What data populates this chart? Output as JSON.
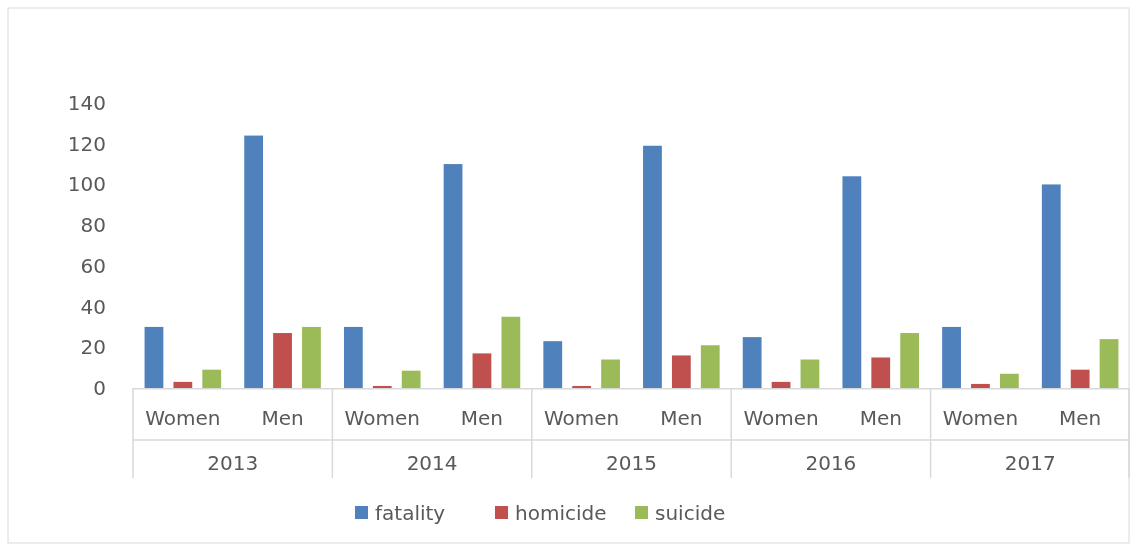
{
  "chart_data": {
    "type": "bar",
    "categories": [
      "Women",
      "Men",
      "Women",
      "Men",
      "Women",
      "Men",
      "Women",
      "Men",
      "Women",
      "Men"
    ],
    "series": [
      {
        "name": "fatality",
        "color": "#4f81bd",
        "values": [
          30,
          124,
          30,
          110,
          23,
          119,
          25,
          104,
          30,
          100
        ]
      },
      {
        "name": "homicide",
        "color": "#c0504d",
        "values": [
          3,
          27,
          1,
          17,
          1,
          16,
          3,
          15,
          2,
          9
        ]
      },
      {
        "name": "suicide",
        "color": "#9bbb59",
        "values": [
          9,
          30,
          8.5,
          35,
          14,
          21,
          14,
          27,
          7,
          24
        ]
      }
    ],
    "annotations": [
      "2013",
      "2014",
      "2015",
      "2016",
      "2017"
    ],
    "ylim": [
      0,
      140
    ],
    "yticks": [
      0,
      20,
      40,
      60,
      80,
      100,
      120,
      140
    ],
    "grid": false,
    "legend": "bottom"
  }
}
